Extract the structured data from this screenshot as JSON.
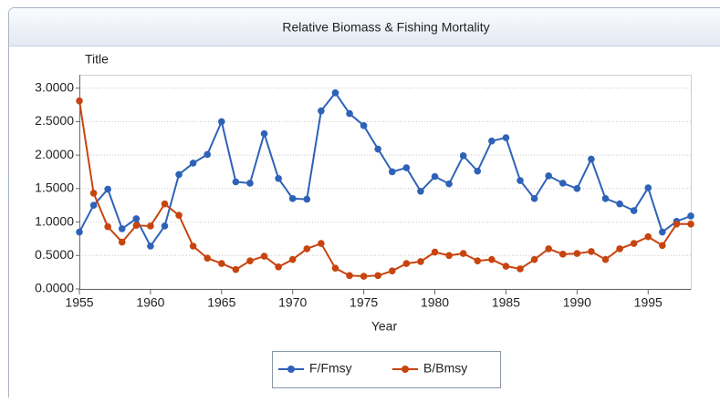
{
  "chart_data": {
    "type": "line",
    "title": "Relative Biomass & Fishing Mortality",
    "y_label": "Title",
    "x_label": "Year",
    "x": [
      1955,
      1956,
      1957,
      1958,
      1959,
      1960,
      1961,
      1962,
      1963,
      1964,
      1965,
      1966,
      1967,
      1968,
      1969,
      1970,
      1971,
      1972,
      1973,
      1974,
      1975,
      1976,
      1977,
      1978,
      1979,
      1980,
      1981,
      1982,
      1983,
      1984,
      1985,
      1986,
      1987,
      1988,
      1989,
      1990,
      1991,
      1992,
      1993,
      1994,
      1995,
      1996,
      1997,
      1998
    ],
    "series": [
      {
        "name": "F/Fmsy",
        "color": "#2e62b8",
        "values": [
          0.85,
          1.25,
          1.49,
          0.9,
          1.05,
          0.64,
          0.94,
          1.71,
          1.88,
          2.01,
          2.5,
          1.6,
          1.58,
          2.32,
          1.65,
          1.35,
          1.34,
          2.66,
          2.93,
          2.62,
          2.44,
          2.09,
          1.75,
          1.81,
          1.46,
          1.68,
          1.57,
          1.99,
          1.76,
          2.21,
          2.26,
          1.62,
          1.35,
          1.69,
          1.58,
          1.5,
          1.94,
          1.35,
          1.27,
          1.17,
          1.51,
          0.85,
          1.01,
          1.09
        ]
      },
      {
        "name": "B/Bmsy",
        "color": "#c8440f",
        "values": [
          2.81,
          1.43,
          0.93,
          0.7,
          0.95,
          0.94,
          1.27,
          1.1,
          0.64,
          0.46,
          0.38,
          0.29,
          0.42,
          0.49,
          0.33,
          0.44,
          0.6,
          0.68,
          0.31,
          0.2,
          0.19,
          0.2,
          0.27,
          0.38,
          0.41,
          0.55,
          0.5,
          0.53,
          0.42,
          0.44,
          0.34,
          0.3,
          0.44,
          0.6,
          0.52,
          0.53,
          0.56,
          0.44,
          0.6,
          0.68,
          0.78,
          0.65,
          0.97,
          0.97
        ]
      }
    ],
    "xlim": [
      1955,
      1998
    ],
    "xticks": [
      1955,
      1960,
      1965,
      1970,
      1975,
      1980,
      1985,
      1990,
      1995
    ],
    "ylim": [
      0,
      3.2
    ],
    "yticks": [
      {
        "value": 0,
        "label": "0.0000"
      },
      {
        "value": 0.5,
        "label": "0.5000"
      },
      {
        "value": 1,
        "label": "1.0000"
      },
      {
        "value": 1.5,
        "label": "1.5000"
      },
      {
        "value": 2,
        "label": "2.0000"
      },
      {
        "value": 2.5,
        "label": "2.5000"
      },
      {
        "value": 3,
        "label": "3.0000"
      }
    ],
    "grid": true
  }
}
